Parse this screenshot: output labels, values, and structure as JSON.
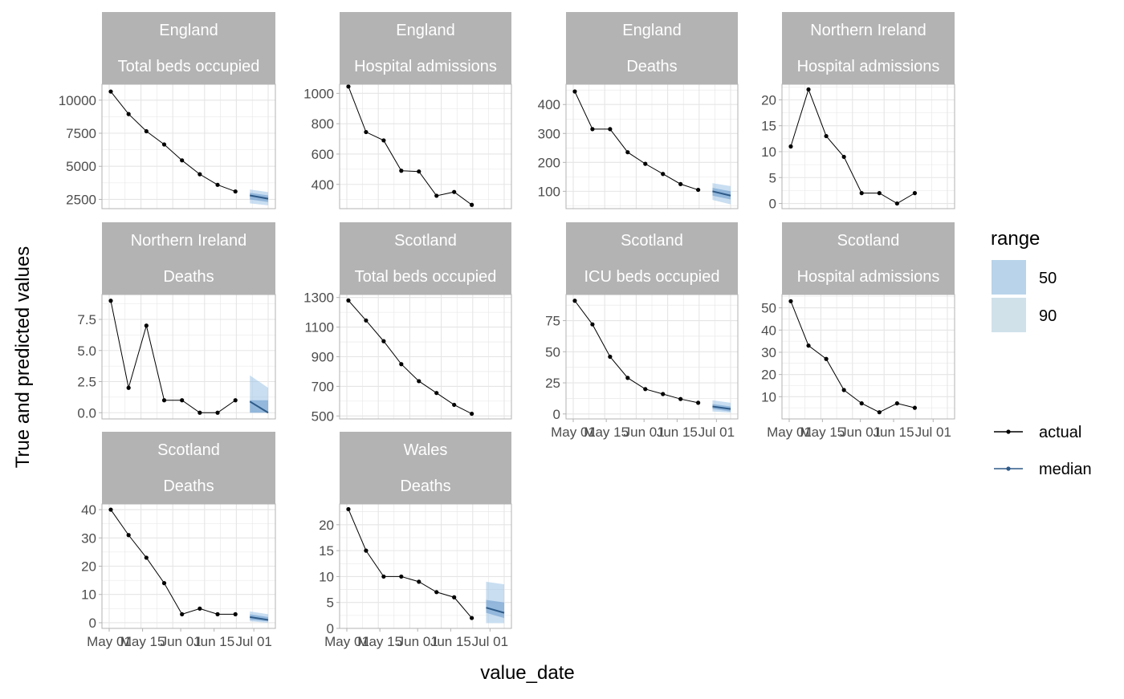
{
  "chart_data": {
    "type": "line",
    "xlabel": "value_date",
    "ylabel": "True and predicted values",
    "x_tick_labels": [
      "May 01",
      "May 15",
      "Jun 01",
      "Jun 15",
      "Jul 01"
    ],
    "legend": {
      "title": "range",
      "position": "right",
      "fill_entries": [
        {
          "label": "50",
          "color": "#b8d3ea"
        },
        {
          "label": "90",
          "color": "#d0e1ea"
        }
      ],
      "line_entries": [
        {
          "label": "actual",
          "color": "#000000"
        },
        {
          "label": "median",
          "color": "#2e5a88"
        }
      ]
    },
    "colors": {
      "strip": "#b3b3b3",
      "strip_text": "#ffffff",
      "actual": "#000000",
      "median": "#2e5a88",
      "band50": "#6f9fce",
      "band90": "#9dc3e6",
      "grid": "#e5e5e5",
      "panel_border": "#b3b3b3"
    },
    "panels": [
      {
        "strip": [
          "England",
          "Total beds occupied"
        ],
        "ylim": [
          1800,
          11200
        ],
        "y_ticks": [
          2500,
          5000,
          7500,
          10000
        ],
        "y_tick_labels": [
          "2500",
          "5000",
          "7500",
          "10000"
        ],
        "show_x_labels": false,
        "actual": [
          10650,
          8950,
          7650,
          6650,
          5450,
          4400,
          3600,
          3100
        ],
        "forecast": {
          "x": [
            0,
            1
          ],
          "median": [
            2800,
            2550
          ],
          "lo50": [
            2500,
            2300
          ],
          "hi50": [
            3000,
            2800
          ],
          "lo90": [
            2200,
            2050
          ],
          "hi90": [
            3250,
            3050
          ]
        }
      },
      {
        "strip": [
          "England",
          "Hospital admissions"
        ],
        "ylim": [
          240,
          1060
        ],
        "y_ticks": [
          400,
          600,
          800,
          1000
        ],
        "y_tick_labels": [
          "400",
          "600",
          "800",
          "1000"
        ],
        "show_x_labels": false,
        "actual": [
          1045,
          745,
          690,
          490,
          485,
          325,
          350,
          265
        ],
        "forecast": null
      },
      {
        "strip": [
          "England",
          "Deaths"
        ],
        "ylim": [
          40,
          470
        ],
        "y_ticks": [
          100,
          200,
          300,
          400
        ],
        "y_tick_labels": [
          "100",
          "200",
          "300",
          "400"
        ],
        "show_x_labels": false,
        "actual": [
          445,
          315,
          315,
          235,
          195,
          160,
          125,
          105
        ],
        "forecast": {
          "x": [
            0,
            1
          ],
          "median": [
            100,
            85
          ],
          "lo50": [
            85,
            72
          ],
          "hi50": [
            112,
            100
          ],
          "lo90": [
            70,
            55
          ],
          "hi90": [
            128,
            118
          ]
        }
      },
      {
        "strip": [
          "Northern Ireland",
          "Hospital admissions"
        ],
        "ylim": [
          -1,
          23
        ],
        "y_ticks": [
          0,
          5,
          10,
          15,
          20
        ],
        "y_tick_labels": [
          "0",
          "5",
          "10",
          "15",
          "20"
        ],
        "show_x_labels": false,
        "actual": [
          11,
          22,
          13,
          9,
          2,
          2,
          0,
          2
        ],
        "forecast": null
      },
      {
        "strip": [
          "Northern Ireland",
          "Deaths"
        ],
        "ylim": [
          -0.5,
          9.5
        ],
        "y_ticks": [
          0,
          2.5,
          5,
          7.5
        ],
        "y_tick_labels": [
          "0.0",
          "2.5",
          "5.0",
          "7.5"
        ],
        "show_x_labels": false,
        "actual": [
          9,
          2,
          7,
          1,
          1,
          0,
          0,
          1
        ],
        "forecast": {
          "x": [
            0,
            1
          ],
          "median": [
            0.9,
            0.0
          ],
          "lo50": [
            0.0,
            0.0
          ],
          "hi50": [
            1.0,
            1.0
          ],
          "lo90": [
            0.0,
            0.0
          ],
          "hi90": [
            3.0,
            2.0
          ]
        }
      },
      {
        "strip": [
          "Scotland",
          "Total beds occupied"
        ],
        "ylim": [
          480,
          1320
        ],
        "y_ticks": [
          500,
          700,
          900,
          1100,
          1300
        ],
        "y_tick_labels": [
          "500",
          "700",
          "900",
          "1100",
          "1300"
        ],
        "show_x_labels": false,
        "actual": [
          1280,
          1145,
          1005,
          850,
          735,
          655,
          575,
          515
        ],
        "forecast": null
      },
      {
        "strip": [
          "Scotland",
          "ICU beds occupied"
        ],
        "ylim": [
          -4,
          96
        ],
        "y_ticks": [
          0,
          25,
          50,
          75
        ],
        "y_tick_labels": [
          "0",
          "25",
          "50",
          "75"
        ],
        "show_x_labels": true,
        "actual": [
          91,
          72,
          46,
          29,
          20,
          16,
          12,
          9
        ],
        "forecast": {
          "x": [
            0,
            1
          ],
          "median": [
            6,
            4
          ],
          "lo50": [
            4,
            2
          ],
          "hi50": [
            8,
            6
          ],
          "lo90": [
            2,
            1
          ],
          "hi90": [
            11,
            9
          ]
        }
      },
      {
        "strip": [
          "Scotland",
          "Hospital admissions"
        ],
        "ylim": [
          0,
          56
        ],
        "y_ticks": [
          10,
          20,
          30,
          40,
          50
        ],
        "y_tick_labels": [
          "10",
          "20",
          "30",
          "40",
          "50"
        ],
        "show_x_labels": true,
        "actual": [
          53,
          33,
          27,
          13,
          7,
          3,
          7,
          5
        ],
        "forecast": null
      },
      {
        "strip": [
          "Scotland",
          "Deaths"
        ],
        "ylim": [
          -2,
          42
        ],
        "y_ticks": [
          0,
          10,
          20,
          30,
          40
        ],
        "y_tick_labels": [
          "0",
          "10",
          "20",
          "30",
          "40"
        ],
        "show_x_labels": true,
        "actual": [
          40,
          31,
          23,
          14,
          3,
          5,
          3,
          3
        ],
        "forecast": {
          "x": [
            0,
            1
          ],
          "median": [
            2,
            1
          ],
          "lo50": [
            1,
            0.5
          ],
          "hi50": [
            3,
            2
          ],
          "lo90": [
            0.5,
            0
          ],
          "hi90": [
            4,
            3
          ]
        }
      },
      {
        "strip": [
          "Wales",
          "Deaths"
        ],
        "ylim": [
          0,
          24
        ],
        "y_ticks": [
          0,
          5,
          10,
          15,
          20
        ],
        "y_tick_labels": [
          "0",
          "5",
          "10",
          "15",
          "20"
        ],
        "show_x_labels": true,
        "actual": [
          23,
          15,
          10,
          10,
          9,
          7,
          6,
          2
        ],
        "forecast": {
          "x": [
            0,
            1
          ],
          "median": [
            4,
            3
          ],
          "lo50": [
            3,
            2
          ],
          "hi50": [
            5.5,
            5
          ],
          "lo90": [
            1,
            1
          ],
          "hi90": [
            9,
            8.5
          ]
        }
      }
    ]
  }
}
